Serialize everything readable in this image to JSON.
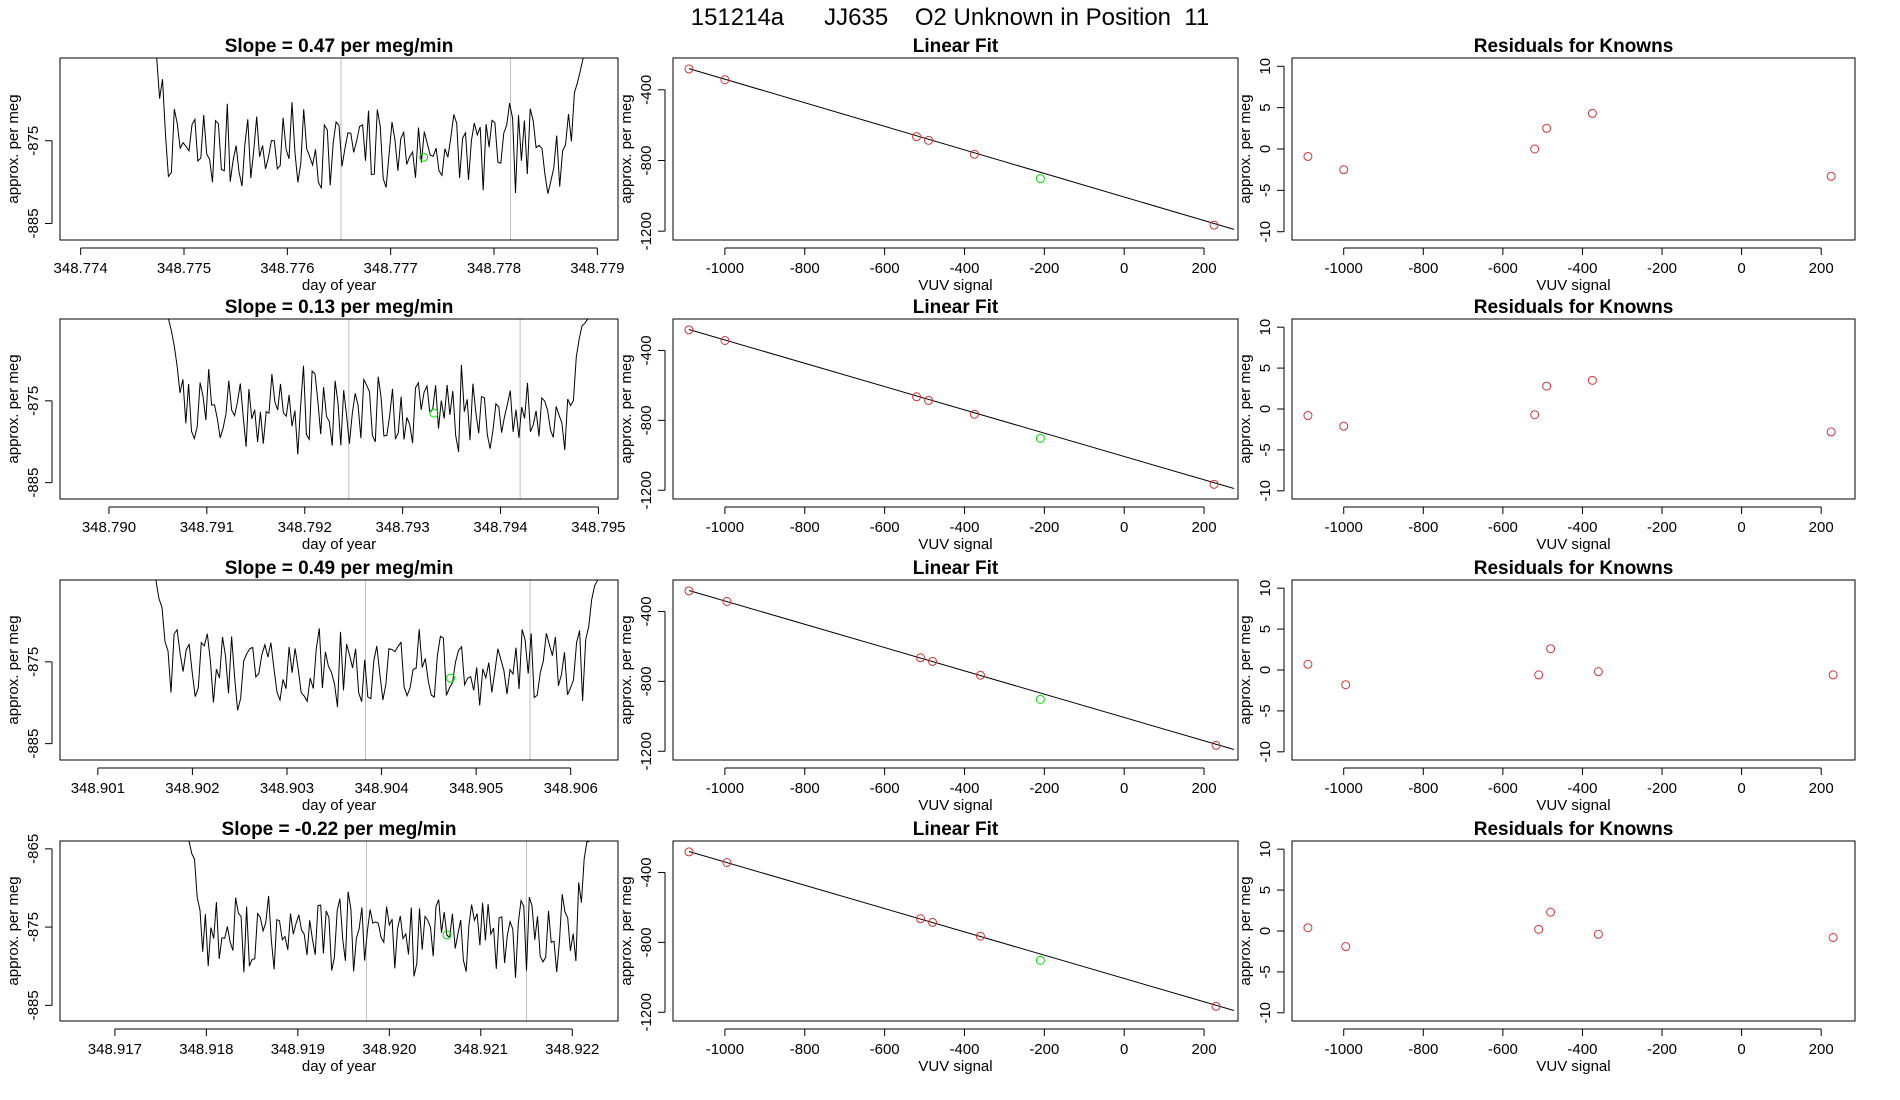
{
  "figure_title": "151214a      JJ635    O2 Unknown in Position  11",
  "colors": {
    "series": "#000000",
    "known": "#cd3333",
    "unknown": "#00dd00",
    "window": "#bebebe"
  },
  "chart_data": {
    "type": "multi-panel",
    "rows": [
      {
        "time_panel": {
          "title": "Slope =  0.47  per meg/min",
          "xlabel": "day of year",
          "ylabel": "approx. per meg",
          "xlim": [
            348.7738,
            348.7792
          ],
          "ylim": [
            -887,
            -865
          ],
          "xticks": [
            "348.774",
            "348.775",
            "348.776",
            "348.777",
            "348.778",
            "348.779"
          ],
          "yticks": [
            "-875",
            "-885"
          ],
          "ytick_values": [
            -875,
            -885
          ],
          "series_start": 348.77465,
          "series_end": 348.77892,
          "window": [
            348.77652,
            348.77816
          ],
          "unknown_point": [
            348.77732,
            -877.0
          ],
          "trace_seed": 7
        },
        "fit_panel": {
          "title": "Linear Fit",
          "xlabel": "VUV signal",
          "ylabel": "approx. per meg",
          "xlim": [
            -1130,
            285
          ],
          "ylim": [
            -1250,
            -220
          ],
          "xticks": [
            "-1000",
            "-800",
            "-600",
            "-400",
            "-200",
            "0",
            "200"
          ],
          "xtick_values": [
            -1000,
            -800,
            -600,
            -400,
            -200,
            0,
            200
          ],
          "yticks": [
            "-400",
            "-800",
            "-1200"
          ],
          "ytick_values": [
            -400,
            -800,
            -1200
          ],
          "line": [
            [
              -1090,
              -280
            ],
            [
              275,
              -1190
            ]
          ],
          "knowns": [
            [
              -1090,
              -282
            ],
            [
              -1000,
              -343
            ],
            [
              -520,
              -665
            ],
            [
              -490,
              -686
            ],
            [
              -375,
              -765
            ],
            [
              225,
              -1166
            ]
          ],
          "unknown": [
            -210,
            -903
          ]
        },
        "resid_panel": {
          "title": "Residuals for Knowns",
          "xlabel": "VUV signal",
          "ylabel": "approx. per meg",
          "xlim": [
            -1130,
            285
          ],
          "ylim": [
            -11,
            11
          ],
          "xticks": [
            "-1000",
            "-800",
            "-600",
            "-400",
            "-200",
            "0",
            "200"
          ],
          "xtick_values": [
            -1000,
            -800,
            -600,
            -400,
            -200,
            0,
            200
          ],
          "yticks": [
            "-10",
            "-5",
            "0",
            "5",
            "10"
          ],
          "ytick_values": [
            -10,
            -5,
            0,
            5,
            10
          ],
          "points": [
            [
              -1090,
              -0.9
            ],
            [
              -1000,
              -2.5
            ],
            [
              -520,
              0.0
            ],
            [
              -490,
              2.5
            ],
            [
              -375,
              4.3
            ],
            [
              225,
              -3.3
            ]
          ]
        }
      },
      {
        "time_panel": {
          "title": "Slope =  0.13  per meg/min",
          "xlabel": "day of year",
          "ylabel": "approx. per meg",
          "xlim": [
            348.7895,
            348.7952
          ],
          "ylim": [
            -887,
            -865
          ],
          "xticks": [
            "348.790",
            "348.791",
            "348.792",
            "348.793",
            "348.794",
            "348.795"
          ],
          "yticks": [
            "-875",
            "-885"
          ],
          "ytick_values": [
            -875,
            -885
          ],
          "series_start": 348.79055,
          "series_end": 348.79495,
          "window": [
            348.79245,
            348.7942
          ],
          "unknown_point": [
            348.79332,
            -876.5
          ],
          "trace_seed": 21
        },
        "fit_panel": {
          "title": "Linear Fit",
          "xlabel": "VUV signal",
          "ylabel": "approx. per meg",
          "xlim": [
            -1130,
            285
          ],
          "ylim": [
            -1250,
            -220
          ],
          "xticks": [
            "-1000",
            "-800",
            "-600",
            "-400",
            "-200",
            "0",
            "200"
          ],
          "xtick_values": [
            -1000,
            -800,
            -600,
            -400,
            -200,
            0,
            200
          ],
          "yticks": [
            "-400",
            "-800",
            "-1200"
          ],
          "ytick_values": [
            -400,
            -800,
            -1200
          ],
          "line": [
            [
              -1090,
              -280
            ],
            [
              275,
              -1190
            ]
          ],
          "knowns": [
            [
              -1090,
              -282
            ],
            [
              -1000,
              -343
            ],
            [
              -520,
              -665
            ],
            [
              -490,
              -686
            ],
            [
              -375,
              -765
            ],
            [
              225,
              -1166
            ]
          ],
          "unknown": [
            -210,
            -903
          ]
        },
        "resid_panel": {
          "title": "Residuals for Knowns",
          "xlabel": "VUV signal",
          "ylabel": "approx. per meg",
          "xlim": [
            -1130,
            285
          ],
          "ylim": [
            -11,
            11
          ],
          "xticks": [
            "-1000",
            "-800",
            "-600",
            "-400",
            "-200",
            "0",
            "200"
          ],
          "xtick_values": [
            -1000,
            -800,
            -600,
            -400,
            -200,
            0,
            200
          ],
          "yticks": [
            "-10",
            "-5",
            "0",
            "5",
            "10"
          ],
          "ytick_values": [
            -10,
            -5,
            0,
            5,
            10
          ],
          "points": [
            [
              -1090,
              -0.8
            ],
            [
              -1000,
              -2.1
            ],
            [
              -520,
              -0.7
            ],
            [
              -490,
              2.8
            ],
            [
              -375,
              3.5
            ],
            [
              225,
              -2.8
            ]
          ]
        }
      },
      {
        "time_panel": {
          "title": "Slope =  0.49  per meg/min",
          "xlabel": "day of year",
          "ylabel": "approx. per meg",
          "xlim": [
            348.9006,
            348.9065
          ],
          "ylim": [
            -887,
            -865
          ],
          "xticks": [
            "348.901",
            "348.902",
            "348.903",
            "348.904",
            "348.905",
            "348.906"
          ],
          "yticks": [
            "-875",
            "-885"
          ],
          "ytick_values": [
            -875,
            -885
          ],
          "series_start": 348.90155,
          "series_end": 348.90635,
          "window": [
            348.90383,
            348.90557
          ],
          "unknown_point": [
            348.90473,
            -877.0
          ],
          "trace_seed": 42
        },
        "fit_panel": {
          "title": "Linear Fit",
          "xlabel": "VUV signal",
          "ylabel": "approx. per meg",
          "xlim": [
            -1130,
            285
          ],
          "ylim": [
            -1250,
            -220
          ],
          "xticks": [
            "-1000",
            "-800",
            "-600",
            "-400",
            "-200",
            "0",
            "200"
          ],
          "xtick_values": [
            -1000,
            -800,
            -600,
            -400,
            -200,
            0,
            200
          ],
          "yticks": [
            "-400",
            "-800",
            "-1200"
          ],
          "ytick_values": [
            -400,
            -800,
            -1200
          ],
          "line": [
            [
              -1090,
              -280
            ],
            [
              275,
              -1190
            ]
          ],
          "knowns": [
            [
              -1090,
              -282
            ],
            [
              -995,
              -343
            ],
            [
              -510,
              -665
            ],
            [
              -480,
              -686
            ],
            [
              -360,
              -765
            ],
            [
              230,
              -1166
            ]
          ],
          "unknown": [
            -210,
            -903
          ]
        },
        "resid_panel": {
          "title": "Residuals for Knowns",
          "xlabel": "VUV signal",
          "ylabel": "approx. per meg",
          "xlim": [
            -1130,
            285
          ],
          "ylim": [
            -11,
            11
          ],
          "xticks": [
            "-1000",
            "-800",
            "-600",
            "-400",
            "-200",
            "0",
            "200"
          ],
          "xtick_values": [
            -1000,
            -800,
            -600,
            -400,
            -200,
            0,
            200
          ],
          "yticks": [
            "-10",
            "-5",
            "0",
            "5",
            "10"
          ],
          "ytick_values": [
            -10,
            -5,
            0,
            5,
            10
          ],
          "points": [
            [
              -1090,
              0.7
            ],
            [
              -995,
              -1.8
            ],
            [
              -510,
              -0.6
            ],
            [
              -480,
              2.6
            ],
            [
              -360,
              -0.2
            ],
            [
              230,
              -0.6
            ]
          ]
        }
      },
      {
        "time_panel": {
          "title": "Slope =  -0.22  per meg/min",
          "xlabel": "day of year",
          "ylabel": "approx. per meg",
          "xlim": [
            348.9164,
            348.9225
          ],
          "ylim": [
            -887,
            -864
          ],
          "xticks": [
            "348.917",
            "348.918",
            "348.919",
            "348.920",
            "348.921",
            "348.922"
          ],
          "yticks": [
            "-865",
            "-875",
            "-885"
          ],
          "ytick_values": [
            -865,
            -875,
            -885
          ],
          "series_start": 348.91775,
          "series_end": 348.92225,
          "window": [
            348.91975,
            348.9215
          ],
          "unknown_point": [
            348.92063,
            -876.0
          ],
          "trace_seed": 77
        },
        "fit_panel": {
          "title": "Linear Fit",
          "xlabel": "VUV signal",
          "ylabel": "approx. per meg",
          "xlim": [
            -1130,
            285
          ],
          "ylim": [
            -1250,
            -220
          ],
          "xticks": [
            "-1000",
            "-800",
            "-600",
            "-400",
            "-200",
            "0",
            "200"
          ],
          "xtick_values": [
            -1000,
            -800,
            -600,
            -400,
            -200,
            0,
            200
          ],
          "yticks": [
            "-400",
            "-800",
            "-1200"
          ],
          "ytick_values": [
            -400,
            -800,
            -1200
          ],
          "line": [
            [
              -1090,
              -280
            ],
            [
              275,
              -1190
            ]
          ],
          "knowns": [
            [
              -1090,
              -282
            ],
            [
              -995,
              -343
            ],
            [
              -510,
              -665
            ],
            [
              -480,
              -686
            ],
            [
              -360,
              -765
            ],
            [
              230,
              -1166
            ]
          ],
          "unknown": [
            -210,
            -903
          ]
        },
        "resid_panel": {
          "title": "Residuals for Knowns",
          "xlabel": "VUV signal",
          "ylabel": "approx. per meg",
          "xlim": [
            -1130,
            285
          ],
          "ylim": [
            -11,
            11
          ],
          "xticks": [
            "-1000",
            "-800",
            "-600",
            "-400",
            "-200",
            "0",
            "200"
          ],
          "xtick_values": [
            -1000,
            -800,
            -600,
            -400,
            -200,
            0,
            200
          ],
          "yticks": [
            "-10",
            "-5",
            "0",
            "5",
            "10"
          ],
          "ytick_values": [
            -10,
            -5,
            0,
            5,
            10
          ],
          "points": [
            [
              -1090,
              0.4
            ],
            [
              -995,
              -1.9
            ],
            [
              -510,
              0.2
            ],
            [
              -480,
              2.3
            ],
            [
              -360,
              -0.4
            ],
            [
              230,
              -0.8
            ]
          ]
        }
      }
    ]
  }
}
